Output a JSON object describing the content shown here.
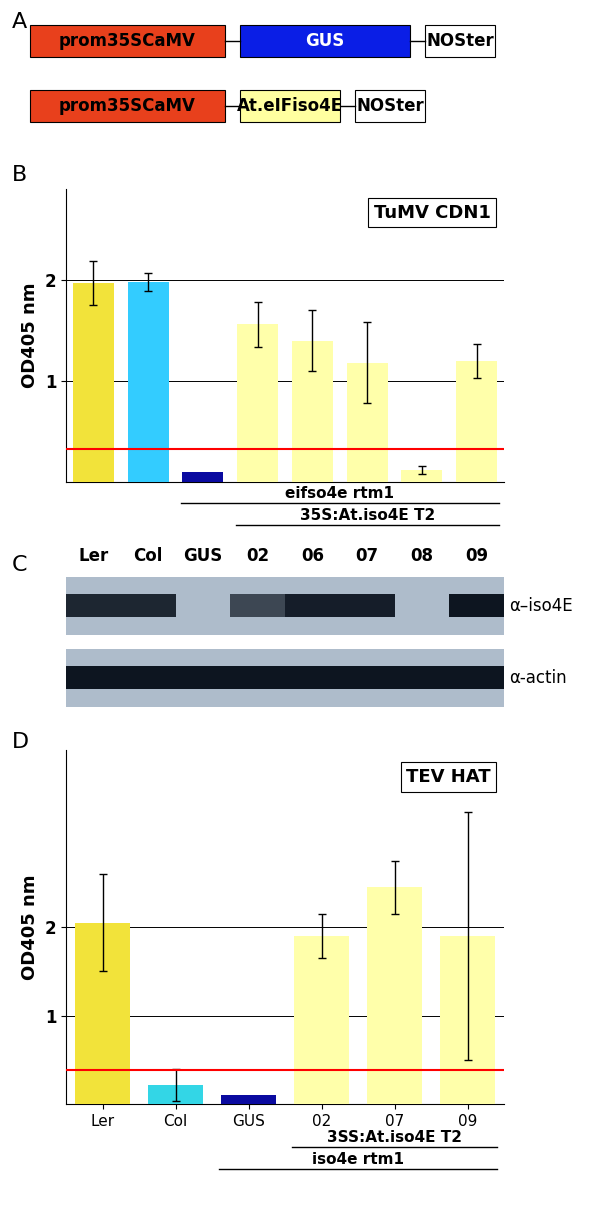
{
  "panel_labels": [
    "A",
    "B",
    "C",
    "D"
  ],
  "diagram": {
    "constructs": [
      [
        {
          "label": "prom35SCaMV",
          "color": "#e8401c"
        },
        {
          "label": "GUS",
          "color": "#0a1ee6"
        },
        {
          "label": "NOSter",
          "color": "#ffffff"
        }
      ],
      [
        {
          "label": "prom35SCaMV",
          "color": "#e8401c"
        },
        {
          "label": "At.eIFiso4E",
          "color": "#ffffa0"
        },
        {
          "label": "NOSter",
          "color": "#ffffff"
        }
      ]
    ]
  },
  "chart_data": [
    {
      "type": "bar",
      "title": "TuMV CDN1",
      "y_label": "OD405 nm",
      "categories": [
        null,
        null,
        null,
        null,
        null,
        null,
        null,
        null
      ],
      "values": [
        1.97,
        1.98,
        0.1,
        1.56,
        1.4,
        1.18,
        0.12,
        1.2
      ],
      "errors": [
        0.22,
        0.09,
        null,
        0.22,
        0.3,
        0.4,
        0.04,
        0.17
      ],
      "colors": [
        "#f2e33a",
        "#33ccff",
        "#0a0aa0",
        "#ffffaa",
        "#ffffaa",
        "#ffffaa",
        "#ffffaa",
        "#ffffaa"
      ],
      "ylim": [
        0,
        2.9
      ],
      "yticks": [
        1,
        2
      ],
      "grid": true,
      "tick_labels": "y",
      "threshold": 0.33,
      "threshold_color": "#ff0000",
      "groups": [
        {
          "label": "eifso4e rtm1",
          "from": 2,
          "to": 7
        },
        {
          "label": "35S:At.iso4E T2",
          "from": 3,
          "to": 7
        }
      ]
    },
    {
      "type": "bar",
      "title": "TEV HAT",
      "y_label": "OD405 nm",
      "categories": [
        "Ler",
        "Col",
        "GUS",
        "02",
        "07",
        "09"
      ],
      "values": [
        2.05,
        0.22,
        0.1,
        1.9,
        2.45,
        1.9
      ],
      "errors": [
        0.55,
        0.18,
        null,
        0.25,
        0.3,
        1.4
      ],
      "colors": [
        "#f2e33a",
        "#33d6e6",
        "#0a0aa0",
        "#ffffaa",
        "#ffffaa",
        "#ffffaa"
      ],
      "ylim": [
        0,
        4
      ],
      "yticks": [
        1,
        2
      ],
      "grid": true,
      "threshold": 0.38,
      "threshold_color": "#ff0000",
      "groups": [
        {
          "label": "3SS:At.iso4E T2",
          "from": 3,
          "to": 5
        },
        {
          "label": "iso4e rtm1",
          "from": 2,
          "to": 5
        }
      ]
    }
  ],
  "blot": {
    "lanes": [
      "Ler",
      "Col",
      "GUS",
      "02",
      "06",
      "07",
      "08",
      "09"
    ],
    "rows": [
      {
        "label": "α–iso4E",
        "intensities": [
          0.9,
          0.9,
          0,
          0.7,
          0.95,
          0.95,
          0,
          1
        ]
      },
      {
        "label": "α-actin",
        "intensities": [
          1,
          1,
          1,
          1,
          1,
          1,
          1,
          1
        ]
      }
    ]
  }
}
